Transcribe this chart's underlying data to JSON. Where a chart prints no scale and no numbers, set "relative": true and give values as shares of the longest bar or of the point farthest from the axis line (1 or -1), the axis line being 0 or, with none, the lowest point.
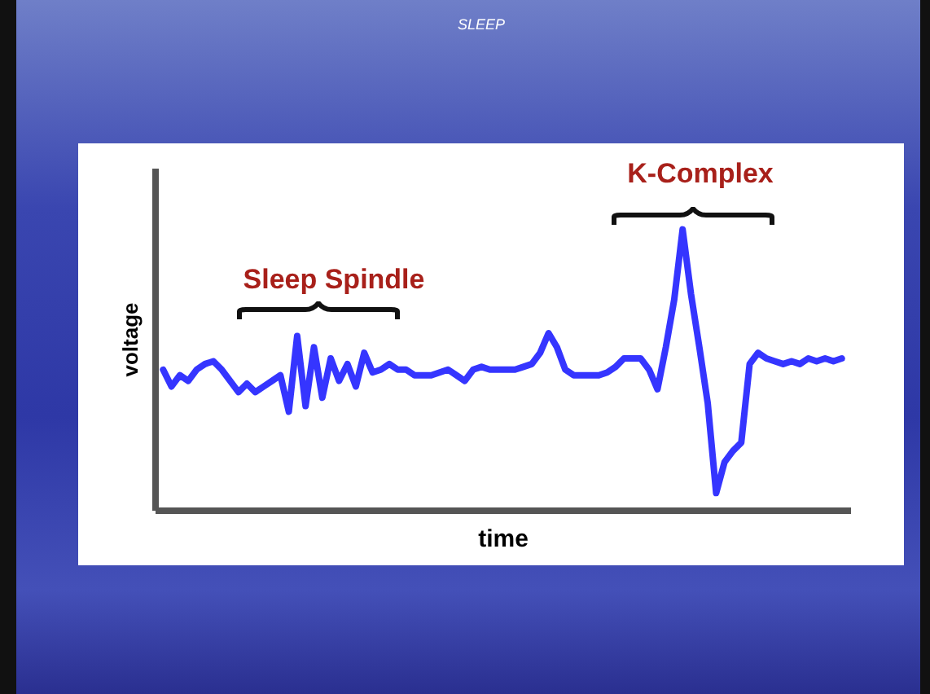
{
  "chart_data": {
    "type": "line",
    "title": "SLEEP",
    "xlabel": "time",
    "ylabel": "voltage",
    "relative": true,
    "annotations": [
      "Sleep Spindle",
      "K-Complex"
    ],
    "categories": [
      null,
      null,
      null,
      null,
      null,
      null,
      null,
      null,
      null,
      null,
      null,
      null,
      null,
      null,
      null,
      null,
      null,
      null,
      null,
      null,
      null,
      null,
      null,
      null,
      null,
      null,
      null,
      null,
      null,
      null,
      null,
      null,
      null,
      null,
      null,
      null,
      null,
      null,
      null,
      null,
      null,
      null,
      null,
      null,
      null,
      null,
      null,
      null,
      null,
      null,
      null,
      null,
      null,
      null,
      null,
      null,
      null,
      null,
      null,
      null,
      null,
      null,
      null,
      null,
      null,
      null,
      null,
      null,
      null,
      null,
      null,
      null,
      null,
      null,
      null,
      null,
      null,
      null,
      null,
      null,
      null,
      null
    ],
    "series": [
      {
        "color": "#1f1fff",
        "values": [
          0.5,
          0.44,
          0.48,
          0.46,
          0.5,
          0.52,
          0.53,
          0.5,
          0.46,
          0.42,
          0.45,
          0.42,
          0.44,
          0.46,
          0.48,
          0.35,
          0.62,
          0.37,
          0.58,
          0.4,
          0.54,
          0.46,
          0.52,
          0.44,
          0.56,
          0.49,
          0.5,
          0.52,
          0.5,
          0.5,
          0.48,
          0.48,
          0.48,
          0.49,
          0.5,
          0.48,
          0.46,
          0.5,
          0.51,
          0.5,
          0.5,
          0.5,
          0.5,
          0.51,
          0.52,
          0.56,
          0.63,
          0.58,
          0.5,
          0.48,
          0.48,
          0.48,
          0.48,
          0.49,
          0.51,
          0.54,
          0.54,
          0.54,
          0.5,
          0.43,
          0.58,
          0.75,
          1,
          0.77,
          0.58,
          0.38,
          0.06,
          0.17,
          0.21,
          0.24,
          0.52,
          0.56,
          0.54,
          0.53,
          0.52,
          0.53,
          0.52,
          0.54,
          0.53,
          0.54,
          0.53,
          0.54
        ]
      }
    ]
  }
}
